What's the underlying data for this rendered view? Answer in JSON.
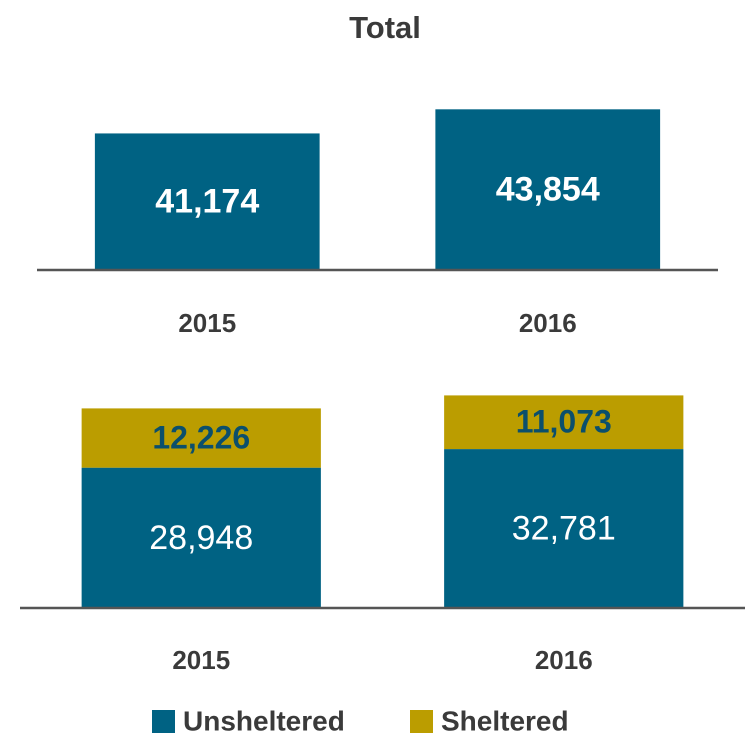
{
  "chart_data": [
    {
      "type": "bar",
      "title": "Total",
      "categories": [
        "2015",
        "2016"
      ],
      "values": [
        41174,
        43854
      ],
      "value_labels": [
        "41,174",
        "43,854"
      ],
      "color": "#006283",
      "ylim": [
        26000,
        46000
      ]
    },
    {
      "type": "stacked_bar",
      "categories": [
        "2015",
        "2016"
      ],
      "series": [
        {
          "name": "Unsheltered",
          "color": "#006283",
          "values": [
            28948,
            32781
          ],
          "value_labels": [
            "28,948",
            "32,781"
          ]
        },
        {
          "name": "Sheltered",
          "color": "#bb9d00",
          "values": [
            12226,
            11073
          ],
          "value_labels": [
            "12,226",
            "11,073"
          ]
        }
      ],
      "ylim": [
        0,
        46000
      ],
      "legend": "bottom"
    }
  ]
}
